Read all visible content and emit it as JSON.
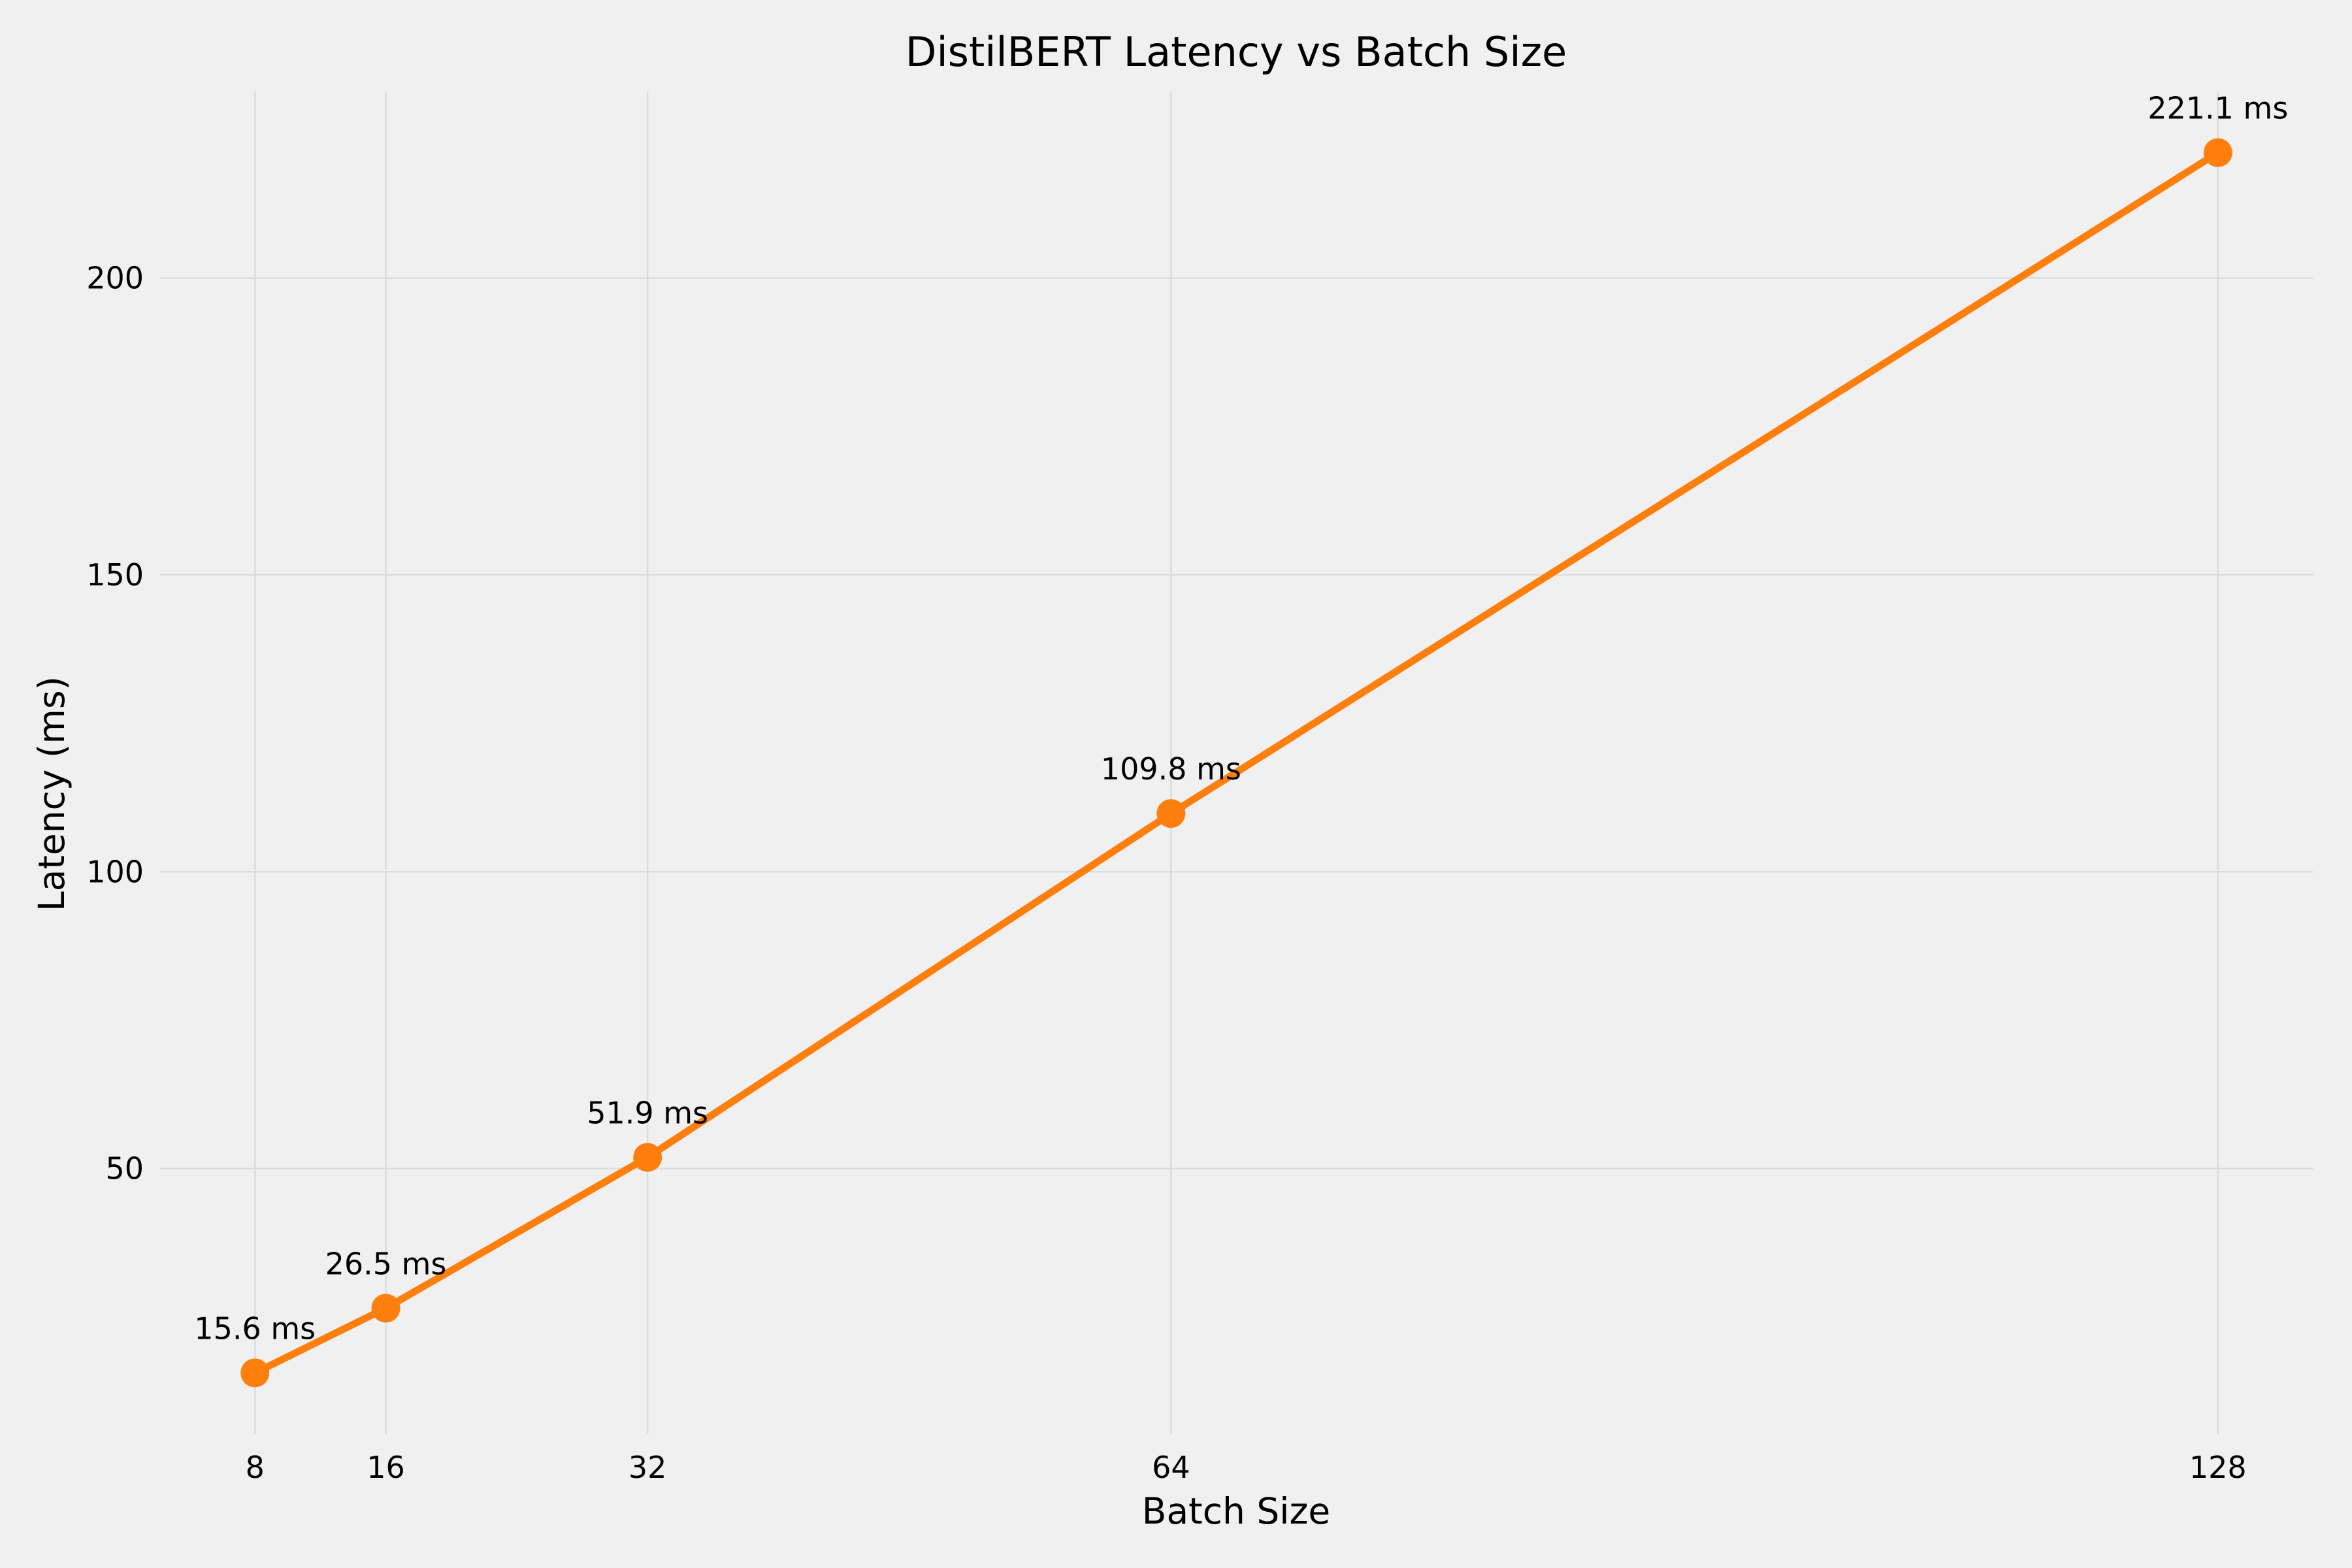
{
  "chart_data": {
    "type": "line",
    "title": "DistilBERT Latency vs Batch Size",
    "xlabel": "Batch Size",
    "ylabel": "Latency (ms)",
    "x": [
      8,
      16,
      32,
      64,
      128
    ],
    "x_tick_labels": [
      "8",
      "16",
      "32",
      "64",
      "128"
    ],
    "xlim": [
      2.2,
      133.8
    ],
    "ylim": [
      5.3,
      231.4
    ],
    "y_ticks": [
      50,
      100,
      150,
      200
    ],
    "y_tick_labels": [
      "50",
      "100",
      "150",
      "200"
    ],
    "grid": true,
    "legend": "none",
    "series": [
      {
        "values": [
          15.6,
          26.5,
          51.9,
          109.8,
          221.1
        ],
        "data_labels": [
          "15.6 ms",
          "26.5 ms",
          "51.9 ms",
          "109.8 ms",
          "221.1 ms"
        ],
        "color": "#ff7f0e"
      }
    ],
    "background_color": "#f0f0f0"
  }
}
